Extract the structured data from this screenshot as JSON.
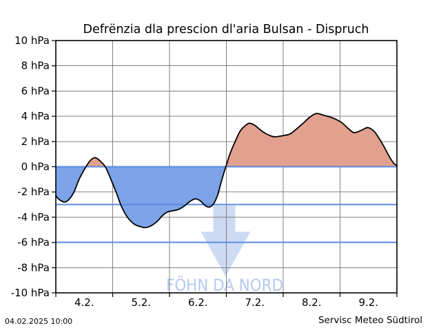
{
  "footer": {
    "timestamp": "04.02.2025 10:00",
    "source": "Servisc Meteo Südtirol"
  },
  "chart_data": {
    "type": "area",
    "title": "Defrënzia dla prescion dl'aria Bulsan - Dispruch",
    "xlabel": "",
    "ylabel": "hPa",
    "ylim": [
      -10,
      10
    ],
    "ytick_values": [
      10,
      8,
      6,
      4,
      2,
      0,
      -2,
      -4,
      -6,
      -8,
      -10
    ],
    "ytick_labels": [
      "10 hPa",
      "8 hPa",
      "6 hPa",
      "4 hPa",
      "2 hPa",
      "0 hPa",
      "-2 hPa",
      "-4 hPa",
      "-6 hPa",
      "-8 hPa",
      "-10 hPa"
    ],
    "x_range_day_of_february": [
      4,
      10
    ],
    "xtick_boundary_days": [
      4,
      5,
      6,
      7,
      8,
      9,
      10
    ],
    "xtick_center_days": [
      4.5,
      5.5,
      6.5,
      7.5,
      8.5,
      9.5
    ],
    "xtick_labels": [
      "4.2.",
      "5.2.",
      "6.2.",
      "7.2.",
      "8.2.",
      "9.2."
    ],
    "grid": true,
    "legend": "none",
    "threshold_lines_hpa": [
      0,
      -3,
      -6
    ],
    "annotation": {
      "text": "FÖHN DA NORD",
      "symbol": "down-arrow"
    },
    "series": [
      {
        "name": "Defrënzia dla prescion (Bulsan - Dispruch)",
        "x_day_of_february": [
          4.0,
          4.06,
          4.15,
          4.23,
          4.32,
          4.41,
          4.53,
          4.61,
          4.69,
          4.78,
          4.87,
          4.96,
          5.06,
          5.15,
          5.26,
          5.38,
          5.51,
          5.59,
          5.69,
          5.79,
          5.87,
          5.96,
          6.05,
          6.15,
          6.25,
          6.36,
          6.45,
          6.54,
          6.62,
          6.7,
          6.78,
          6.85,
          6.91,
          6.99,
          7.07,
          7.15,
          7.24,
          7.33,
          7.41,
          7.51,
          7.63,
          7.75,
          7.85,
          8.02,
          8.12,
          8.21,
          8.34,
          8.46,
          8.58,
          8.7,
          8.82,
          8.93,
          9.03,
          9.15,
          9.25,
          9.38,
          9.49,
          9.6,
          9.7,
          9.79,
          9.88,
          9.95,
          10.0
        ],
        "y_hpa": [
          -2.3,
          -2.6,
          -2.8,
          -2.6,
          -2.0,
          -1.0,
          0.0,
          0.5,
          0.72,
          0.45,
          0.0,
          -0.9,
          -2.0,
          -3.1,
          -4.0,
          -4.55,
          -4.78,
          -4.82,
          -4.65,
          -4.3,
          -3.9,
          -3.6,
          -3.5,
          -3.4,
          -3.15,
          -2.75,
          -2.55,
          -2.7,
          -3.05,
          -3.2,
          -2.9,
          -2.2,
          -1.2,
          0.0,
          1.1,
          1.95,
          2.8,
          3.25,
          3.45,
          3.25,
          2.8,
          2.5,
          2.37,
          2.48,
          2.6,
          2.9,
          3.4,
          3.9,
          4.22,
          4.1,
          3.95,
          3.75,
          3.5,
          3.0,
          2.7,
          2.9,
          3.1,
          2.8,
          2.15,
          1.45,
          0.7,
          0.25,
          0.08
        ]
      }
    ],
    "colors": {
      "positive_fill": "#e2a08e",
      "negative_fill": "#7da3e8",
      "threshold_line": "#5a8ade",
      "series_line": "#000000",
      "grid_line": "#7f7f7f",
      "axis_border": "#000000",
      "annotation_text": "#b5c9ef",
      "arrow_fill": "#ccdaf4"
    }
  }
}
